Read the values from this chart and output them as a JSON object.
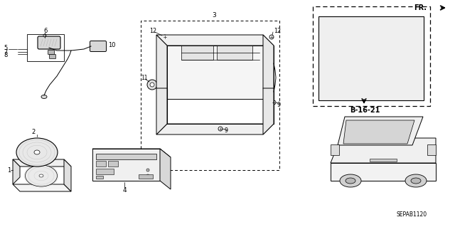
{
  "bg_color": "#ffffff",
  "part_ref": "SEPAB1120",
  "fr_label": "FR.",
  "b_ref": "B-16-21",
  "gray_light": "#d8d8d8",
  "gray_med": "#b8b8b8",
  "gray_dark": "#888888"
}
